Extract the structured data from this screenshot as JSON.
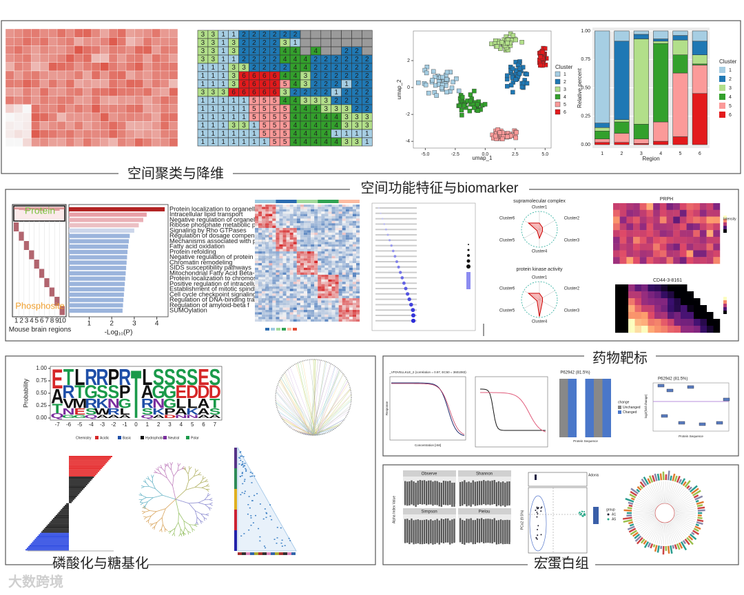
{
  "sections": [
    {
      "title": "空间聚类与降维"
    },
    {
      "title": "空间功能特征与biomarker"
    },
    {
      "title": "磷酸化与糖基化"
    },
    {
      "title": "药物靶标"
    },
    {
      "title": "宏蛋白组"
    }
  ],
  "cluster_grid": {
    "rows": [
      "3311222222",
      "3313222231",
      "3313222244 4  22",
      "33112222444222222",
      "11133222244222222",
      "11136666443222222",
      "11136666543222122",
      "33366666322221222",
      "11111555443332222",
      "11111555544433322",
      "11111555544444333",
      "11133155544444333",
      "11111155544441111",
      "11111115544444331"
    ]
  },
  "umap": {
    "xlabel": "umap_1",
    "ylabel": "umap_2",
    "legend_title": "Cluster",
    "clusters": [
      "1",
      "2",
      "3",
      "4",
      "5",
      "6"
    ],
    "colors": [
      "#a6cee3",
      "#1f78b4",
      "#b2df8a",
      "#33a02c",
      "#fb9a99",
      "#e31a1c"
    ],
    "xlim": [
      -6,
      5.5
    ],
    "ylim": [
      -4.5,
      4.2
    ],
    "xticks": [
      {
        "value": -5,
        "label": "-5.0"
      },
      {
        "value": -2.5,
        "label": "-2.5"
      },
      {
        "value": 0,
        "label": "0.0"
      },
      {
        "value": 2.5,
        "label": "2.5"
      },
      {
        "value": 5,
        "label": "5.0"
      }
    ],
    "yticks": [
      -4,
      -2,
      0,
      2
    ]
  },
  "composition": {
    "type": "bar",
    "categories": [
      "1",
      "2",
      "3",
      "4",
      "5",
      "6"
    ],
    "xlabel": "Region",
    "ylabel": "Relative percent",
    "legend_title": "Cluster",
    "ylim": [
      -0.03,
      1.03
    ],
    "yticks": [
      {
        "value": 0,
        "label": "0.00"
      },
      {
        "value": 0.25,
        "label": "0.25"
      },
      {
        "value": 0.5,
        "label": "0.50"
      },
      {
        "value": 0.75,
        "label": "0.75"
      },
      {
        "value": 1,
        "label": "1.00"
      }
    ],
    "series": [
      {
        "name": "1",
        "color": "#a6cee3",
        "values": [
          0.81,
          0.09,
          0.03,
          0.07,
          0.04,
          0.09
        ]
      },
      {
        "name": "2",
        "color": "#1f78b4",
        "values": [
          0.04,
          0.69,
          0.04,
          0.02,
          0.04,
          0.12
        ]
      },
      {
        "name": "3",
        "color": "#b2df8a",
        "values": [
          0.03,
          0.02,
          0.75,
          0.02,
          0.13,
          0.08
        ]
      },
      {
        "name": "4",
        "color": "#33a02c",
        "values": [
          0.07,
          0.1,
          0.13,
          0.69,
          0.16,
          0.01
        ]
      },
      {
        "name": "5",
        "color": "#fb9a99",
        "values": [
          0.03,
          0.08,
          0.04,
          0.17,
          0.56,
          0.25
        ]
      },
      {
        "name": "6",
        "color": "#e31a1c",
        "values": [
          0.02,
          0.02,
          0.01,
          0.03,
          0.07,
          0.45
        ]
      }
    ]
  },
  "enrichment": {
    "type": "bar",
    "xlabel": "-Log₁₀(P)",
    "xlim": [
      0.1,
      4.5
    ],
    "xticks": [
      1,
      2,
      3,
      4
    ],
    "labels": [
      "Protein localization to organelle",
      "Intracellular lipid transport",
      "Negative regulation of organelle orga",
      "Ribose phosphate metabolic process",
      "Signaling by Rho GTPases",
      "Regulation of dosage compensation l",
      "Mechanisms associated with pluripot",
      "Fatty acid oxidation",
      "Protein refolding",
      "Negative regulation of protein ubiquit",
      "Chromatin remodeling",
      "SIDS susceptibility pathways",
      "Mitochondrial Fatty Acid Beta-Oxidati",
      "Protein localization to chromosome",
      "Positive regulation of intracellular tran",
      "Establishment of mitotic spindle orien",
      "Cell cycle checkpoint signaling",
      "Regulation of DNA-binding transcripti",
      "Regulation of amyloid-beta f",
      "SUMOylation"
    ],
    "values": [
      4.35,
      3.55,
      3.4,
      3.2,
      3.0,
      2.8,
      2.76,
      2.73,
      2.7,
      2.68,
      2.66,
      2.64,
      2.62,
      2.6,
      2.58,
      2.56,
      2.54,
      2.52,
      2.5,
      2.48
    ],
    "colors": [
      "#b22222",
      "#e8a0a8",
      "#eab0b6",
      "#ecc0c4",
      "#ccd6ea",
      "#9bb4dc",
      "#9bb4dc",
      "#9bb4dc",
      "#9bb4dc",
      "#9bb4dc",
      "#9bb4dc",
      "#9bb4dc",
      "#9bb4dc",
      "#9bb4dc",
      "#9bb4dc",
      "#9bb4dc",
      "#9bb4dc",
      "#9bb4dc",
      "#9bb4dc",
      "#9bb4dc"
    ]
  },
  "phospho_heatmap": {
    "top_label": "Protein",
    "bottom_label": "Phosphosite",
    "xlabel": "Mouse brain regions",
    "xticks": [
      "1",
      "2",
      "3",
      "4",
      "5",
      "6",
      "7",
      "8",
      "9",
      "10"
    ]
  },
  "radar": {
    "axes": [
      "Cluster1",
      "Cluster2",
      "Cluster3",
      "Cluster4",
      "Cluster5",
      "Cluster6"
    ],
    "panels": [
      {
        "title": "supramolecular complex"
      },
      {
        "title": "protein kinase activity"
      }
    ]
  },
  "spatial_maps": [
    {
      "title": "PRPH",
      "legend_title": "Intensity"
    },
    {
      "title": "CD44-3-8161"
    }
  ],
  "logo": {
    "ylabel": "Probability",
    "xticks": [
      -7,
      -6,
      -5,
      -4,
      -3,
      -2,
      -1,
      0,
      1,
      2,
      3,
      4,
      5,
      6,
      7
    ],
    "yticks": [
      {
        "value": 0,
        "label": "0.00"
      },
      {
        "value": 0.25,
        "label": "0.25"
      },
      {
        "value": 0.5,
        "label": "0.50"
      },
      {
        "value": 0.75,
        "label": "0.75"
      },
      {
        "value": 1,
        "label": "1.00"
      }
    ],
    "columns": [
      "EATQ",
      "TRVNG",
      "LTMEG",
      "RGRSQ",
      "RSKWA",
      "PSNRA",
      "RPGLA",
      "T",
      "LARSQ",
      "SGNKA",
      "SGGPD",
      "SELAN",
      "SDLKN",
      "EDAAA",
      "SDTSA"
    ],
    "legend_title": "Chemistry",
    "chemistry": [
      {
        "name": "Acidic",
        "color": "#d62728"
      },
      {
        "name": "Basic",
        "color": "#1f4fa8"
      },
      {
        "name": "Hydrophobic",
        "color": "#111111"
      },
      {
        "name": "Neutral",
        "color": "#7b2f9e"
      },
      {
        "name": "Polar",
        "color": "#1a9a4a"
      }
    ]
  },
  "drug": {
    "curve_title": "_VFDVELLKLE_2 (correlation = 0.97, EC50 = 3601083)",
    "curve_xlabel": "Concentration [nM]",
    "curve_ylabel": "Response",
    "bar_title": "P62942 (81.5%)",
    "bar_xlabel": "Protein Sequence",
    "legend_title": "change",
    "legend": [
      "Unchanged",
      "Changed"
    ],
    "box_title": "P62942 (81.5%)",
    "box_xlabel": "Protein Sequence",
    "box_ylabel": "log2(fold change)"
  },
  "meta": {
    "facets": [
      "Observe",
      "Shannon",
      "Simpson",
      "Pielou"
    ],
    "alpha_ylabel": "Alpha Index Value",
    "pcoa_xlabel": "PCo1 (71.78%)",
    "pcoa_ylabel": "PCo2 (9.5%)",
    "adonis": "Adonis",
    "group_title": "group",
    "groups": [
      "A1",
      "A5"
    ]
  },
  "watermark": "大数跨境"
}
